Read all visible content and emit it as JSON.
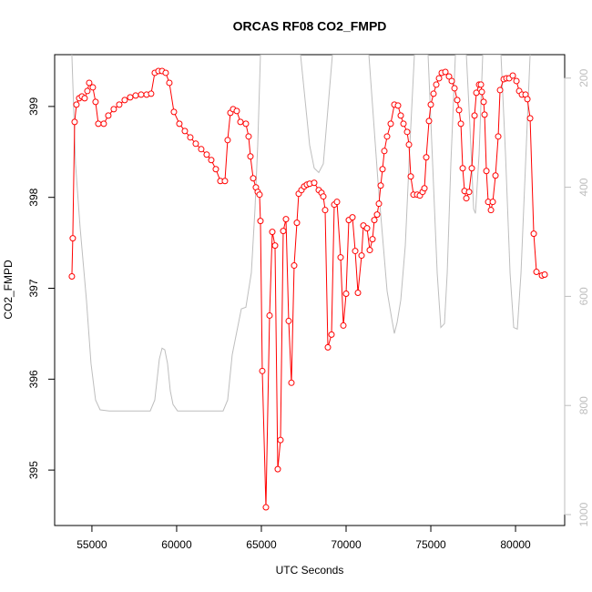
{
  "chart_data": {
    "type": "line",
    "title": "ORCAS RF08 CO2_FMPD",
    "xlabel": "UTC Seconds",
    "ylabel": "CO2_FMPD",
    "xlim": [
      52800,
      82900
    ],
    "xticks": [
      55000,
      60000,
      65000,
      70000,
      75000,
      80000
    ],
    "ylim": [
      394.39,
      399.57
    ],
    "yticks": [
      395,
      396,
      397,
      398,
      399
    ],
    "y2lim": [
      1020,
      157
    ],
    "y2ticks": [
      200,
      400,
      600,
      800,
      1000
    ],
    "y2color": "#bebebe",
    "series": [
      {
        "color": "#bebebe",
        "axis": "y2",
        "markers": false,
        "x": [
          53817,
          54032,
          54301,
          54677,
          54946,
          55215,
          55484,
          56021,
          58441,
          58710,
          58978,
          59140,
          59301,
          59462,
          59624,
          59785,
          60054,
          62742,
          63010,
          63279,
          63817,
          64086,
          64408,
          64623,
          64785,
          64946,
          67312,
          67580,
          67849,
          68118,
          68387,
          68656,
          68925,
          69193,
          71344,
          71613,
          71882,
          72151,
          72419,
          72688,
          72849,
          73010,
          73226,
          73494,
          73763,
          74032,
          74838,
          75107,
          75376,
          75591,
          75806,
          75968,
          76182,
          76451,
          77097,
          77312,
          77527,
          77634,
          77849,
          78064,
          79140,
          79409,
          79677,
          79892,
          80107,
          80323,
          80591,
          80860
        ],
        "values": [
          157,
          357,
          473,
          607,
          723,
          790,
          808,
          810,
          810,
          790,
          715,
          695,
          698,
          723,
          773,
          798,
          810,
          810,
          790,
          707,
          623,
          620,
          557,
          440,
          323,
          157,
          157,
          240,
          323,
          365,
          373,
          357,
          257,
          157,
          157,
          273,
          390,
          490,
          590,
          640,
          668,
          648,
          607,
          507,
          323,
          157,
          157,
          357,
          557,
          657,
          650,
          557,
          357,
          157,
          157,
          290,
          440,
          448,
          340,
          157,
          157,
          340,
          557,
          657,
          660,
          557,
          357,
          157
        ]
      },
      {
        "color": "#ff0000",
        "axis": "y",
        "markers": true,
        "x": [
          53817,
          53870,
          53980,
          54086,
          54247,
          54409,
          54570,
          54731,
          54839,
          55054,
          55215,
          55376,
          55699,
          55968,
          56290,
          56613,
          56935,
          57258,
          57580,
          57903,
          58226,
          58494,
          58710,
          58925,
          59140,
          59355,
          59570,
          59839,
          60161,
          60484,
          60806,
          61129,
          61451,
          61774,
          62043,
          62312,
          62580,
          62849,
          63010,
          63172,
          63333,
          63548,
          63763,
          64086,
          64247,
          64355,
          64516,
          64677,
          64785,
          64892,
          64946,
          65054,
          65269,
          65484,
          65645,
          65806,
          65968,
          66129,
          66290,
          66452,
          66613,
          66774,
          66935,
          67097,
          67204,
          67366,
          67527,
          67688,
          67849,
          68118,
          68387,
          68548,
          68656,
          68763,
          68925,
          69140,
          69301,
          69462,
          69677,
          69839,
          70000,
          70161,
          70376,
          70538,
          70699,
          70914,
          71022,
          71236,
          71398,
          71559,
          71667,
          71828,
          71936,
          72043,
          72151,
          72258,
          72419,
          72634,
          72849,
          73064,
          73226,
          73387,
          73602,
          73710,
          73817,
          73978,
          74193,
          74355,
          74516,
          74624,
          74731,
          74892,
          74999,
          75161,
          75322,
          75484,
          75645,
          75860,
          76075,
          76236,
          76398,
          76559,
          76667,
          76774,
          76882,
          76989,
          77097,
          77258,
          77419,
          77581,
          77688,
          77849,
          77957,
          78011,
          78118,
          78172,
          78280,
          78387,
          78549,
          78656,
          78817,
          78978,
          79086,
          79301,
          79462,
          79624,
          79839,
          80054,
          80215,
          80376,
          80591,
          80699,
          80860,
          81075,
          81236,
          81559,
          81720
        ],
        "values": [
          397.13,
          397.55,
          398.83,
          399.02,
          399.09,
          399.11,
          399.09,
          399.17,
          399.26,
          399.21,
          399.05,
          398.81,
          398.81,
          398.9,
          398.97,
          399.02,
          399.07,
          399.1,
          399.12,
          399.13,
          399.13,
          399.14,
          399.37,
          399.39,
          399.39,
          399.37,
          399.26,
          398.94,
          398.81,
          398.73,
          398.66,
          398.59,
          398.53,
          398.47,
          398.41,
          398.31,
          398.18,
          398.18,
          398.63,
          398.93,
          398.97,
          398.95,
          398.83,
          398.81,
          398.67,
          398.45,
          398.21,
          398.11,
          398.06,
          398.03,
          397.74,
          396.09,
          394.59,
          396.7,
          397.62,
          397.47,
          395.01,
          395.33,
          397.63,
          397.76,
          396.64,
          395.96,
          397.25,
          397.72,
          398.04,
          398.08,
          398.12,
          398.14,
          398.15,
          398.16,
          398.08,
          398.05,
          398.01,
          397.86,
          396.35,
          396.49,
          397.92,
          397.95,
          397.34,
          396.59,
          396.94,
          397.75,
          397.78,
          397.41,
          396.95,
          397.36,
          397.69,
          397.66,
          397.42,
          397.54,
          397.75,
          397.81,
          397.93,
          398.13,
          398.31,
          398.51,
          398.67,
          398.81,
          399.02,
          399.01,
          398.9,
          398.81,
          398.72,
          398.58,
          398.23,
          398.03,
          398.03,
          398.02,
          398.06,
          398.1,
          398.44,
          398.84,
          399.02,
          399.14,
          399.24,
          399.31,
          399.37,
          399.38,
          399.33,
          399.28,
          399.2,
          399.07,
          398.96,
          398.81,
          398.32,
          398.07,
          397.99,
          398.06,
          398.32,
          398.9,
          399.15,
          399.24,
          399.24,
          399.16,
          399.05,
          398.91,
          398.29,
          397.95,
          397.86,
          397.95,
          398.24,
          398.67,
          399.18,
          399.3,
          399.31,
          399.31,
          399.34,
          399.28,
          399.17,
          399.13,
          399.13,
          399.08,
          398.87,
          397.6,
          397.18,
          397.14,
          397.15
        ]
      }
    ]
  }
}
